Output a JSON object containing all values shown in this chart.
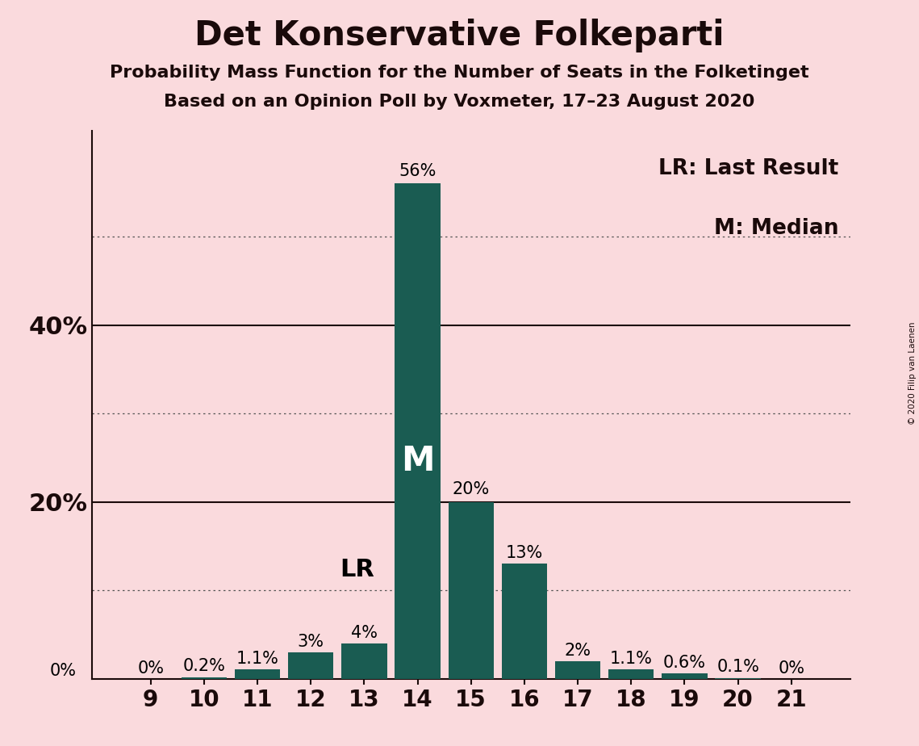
{
  "title": "Det Konservative Folkeparti",
  "subtitle1": "Probability Mass Function for the Number of Seats in the Folketinget",
  "subtitle2": "Based on an Opinion Poll by Voxmeter, 17–23 August 2020",
  "copyright": "© 2020 Filip van Laenen",
  "seats": [
    9,
    10,
    11,
    12,
    13,
    14,
    15,
    16,
    17,
    18,
    19,
    20,
    21
  ],
  "probabilities": [
    0.0,
    0.2,
    1.1,
    3.0,
    4.0,
    56.0,
    20.0,
    13.0,
    2.0,
    1.1,
    0.6,
    0.1,
    0.0
  ],
  "labels": [
    "0%",
    "0.2%",
    "1.1%",
    "3%",
    "4%",
    "56%",
    "20%",
    "13%",
    "2%",
    "1.1%",
    "0.6%",
    "0.1%",
    "0%"
  ],
  "bar_color": "#1a5c52",
  "background_color": "#fadadd",
  "median_seat": 14,
  "last_result_seat": 13,
  "last_result_value": 12.4,
  "legend_lr": "LR: Last Result",
  "legend_m": "M: Median",
  "dotted_yticks": [
    10,
    30,
    50
  ],
  "solid_yticks": [
    20,
    40
  ],
  "title_fontsize": 30,
  "subtitle_fontsize": 16,
  "axis_label_fontsize": 20,
  "bar_label_fontsize": 15,
  "legend_fontsize": 19,
  "median_label_fontsize": 30,
  "lr_label_fontsize": 22,
  "yaxis_label_fontsize": 22,
  "zero_label_fontsize": 15
}
